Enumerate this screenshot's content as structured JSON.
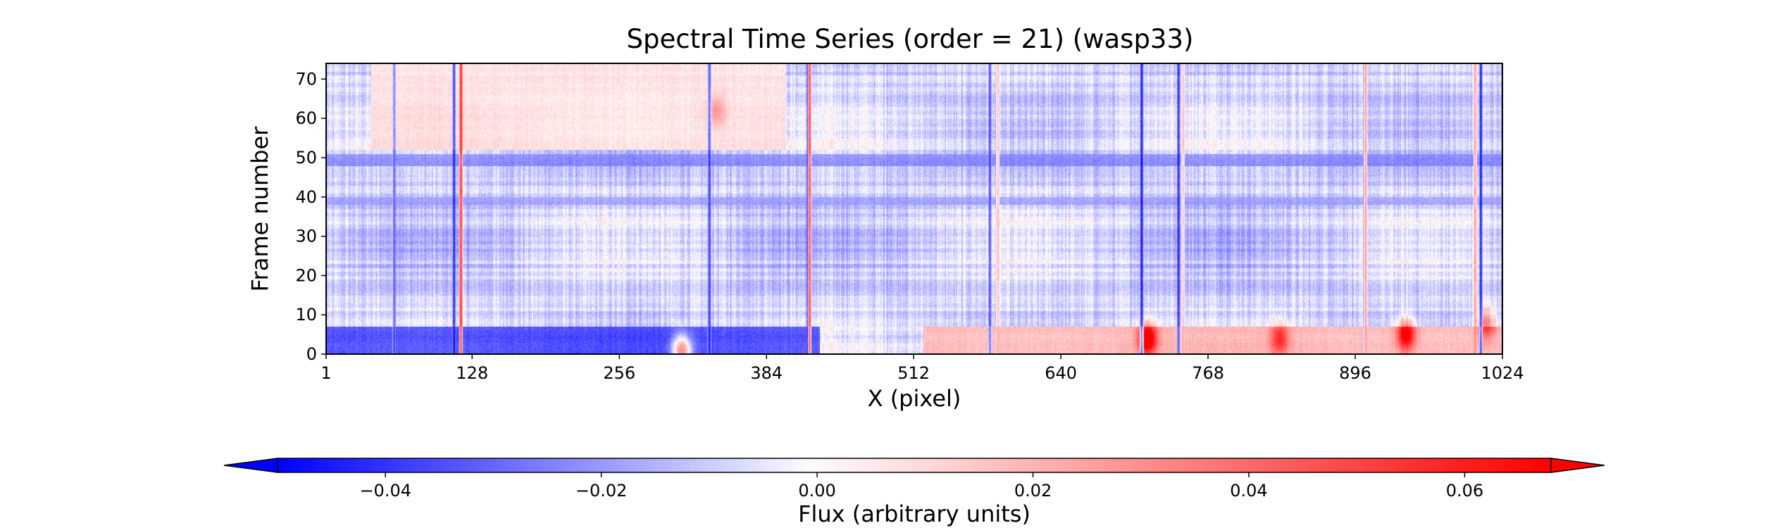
{
  "chart_data": {
    "type": "heatmap",
    "title": "Spectral Time Series (order = 21) (wasp33)",
    "xlabel": "X (pixel)",
    "ylabel": "Frame number",
    "xlim": [
      1,
      1024
    ],
    "ylim": [
      0,
      74
    ],
    "x_ticks": [
      1,
      128,
      256,
      384,
      512,
      640,
      768,
      896,
      1024
    ],
    "x_tick_labels": [
      "1",
      "128",
      "256",
      "384",
      "512",
      "640",
      "768",
      "896",
      "1024"
    ],
    "y_ticks": [
      0,
      10,
      20,
      30,
      40,
      50,
      60,
      70
    ],
    "y_tick_labels": [
      "0",
      "10",
      "20",
      "30",
      "40",
      "50",
      "60",
      "70"
    ],
    "colormap": "bwr",
    "colors": {
      "low": "#0000ff",
      "mid": "#ffffff",
      "high": "#ff0000"
    },
    "colorbar": {
      "label": "Flux (arbitrary units)",
      "vmin": -0.05,
      "vmax": 0.068,
      "extend": "both",
      "orientation": "horizontal",
      "ticks": [
        -0.04,
        -0.02,
        0.0,
        0.02,
        0.04,
        0.06
      ],
      "tick_labels": [
        "−0.04",
        "−0.02",
        "0.00",
        "0.02",
        "0.04",
        "0.06"
      ]
    },
    "features": {
      "background_level": -0.008,
      "vertical_lines": [
        {
          "x": 60,
          "value": -0.03
        },
        {
          "x": 112,
          "value": -0.045
        },
        {
          "x": 118,
          "value": 0.06
        },
        {
          "x": 334,
          "value": -0.04
        },
        {
          "x": 420,
          "value": -0.05
        },
        {
          "x": 421,
          "value": 0.06
        },
        {
          "x": 578,
          "value": -0.035
        },
        {
          "x": 585,
          "value": 0.02
        },
        {
          "x": 710,
          "value": -0.05
        },
        {
          "x": 742,
          "value": -0.045
        },
        {
          "x": 746,
          "value": 0.02
        },
        {
          "x": 904,
          "value": -0.05
        },
        {
          "x": 904.5,
          "value": 0.04
        },
        {
          "x": 1000,
          "value": 0.03
        },
        {
          "x": 1005,
          "value": -0.045
        }
      ],
      "horizontal_bands": [
        {
          "y0": 0,
          "y1": 7,
          "x0": 1,
          "x1": 430,
          "value": -0.04
        },
        {
          "y0": 0,
          "y1": 7,
          "x0": 520,
          "x1": 1024,
          "value": 0.025
        },
        {
          "y0": 48,
          "y1": 51,
          "x0": 1,
          "x1": 1024,
          "value": -0.025
        },
        {
          "y0": 38,
          "y1": 40,
          "x0": 1,
          "x1": 1024,
          "value": -0.02
        },
        {
          "y0": 52,
          "y1": 74,
          "x0": 40,
          "x1": 400,
          "value": 0.012
        }
      ],
      "blobs": [
        {
          "x": 715,
          "y": 4,
          "value": 0.07
        },
        {
          "x": 940,
          "y": 5,
          "value": 0.06
        },
        {
          "x": 1010,
          "y": 8,
          "value": 0.04
        },
        {
          "x": 830,
          "y": 4,
          "value": 0.04
        },
        {
          "x": 340,
          "y": 62,
          "value": 0.02
        },
        {
          "x": 310,
          "y": 1,
          "value": 0.065
        }
      ]
    }
  }
}
